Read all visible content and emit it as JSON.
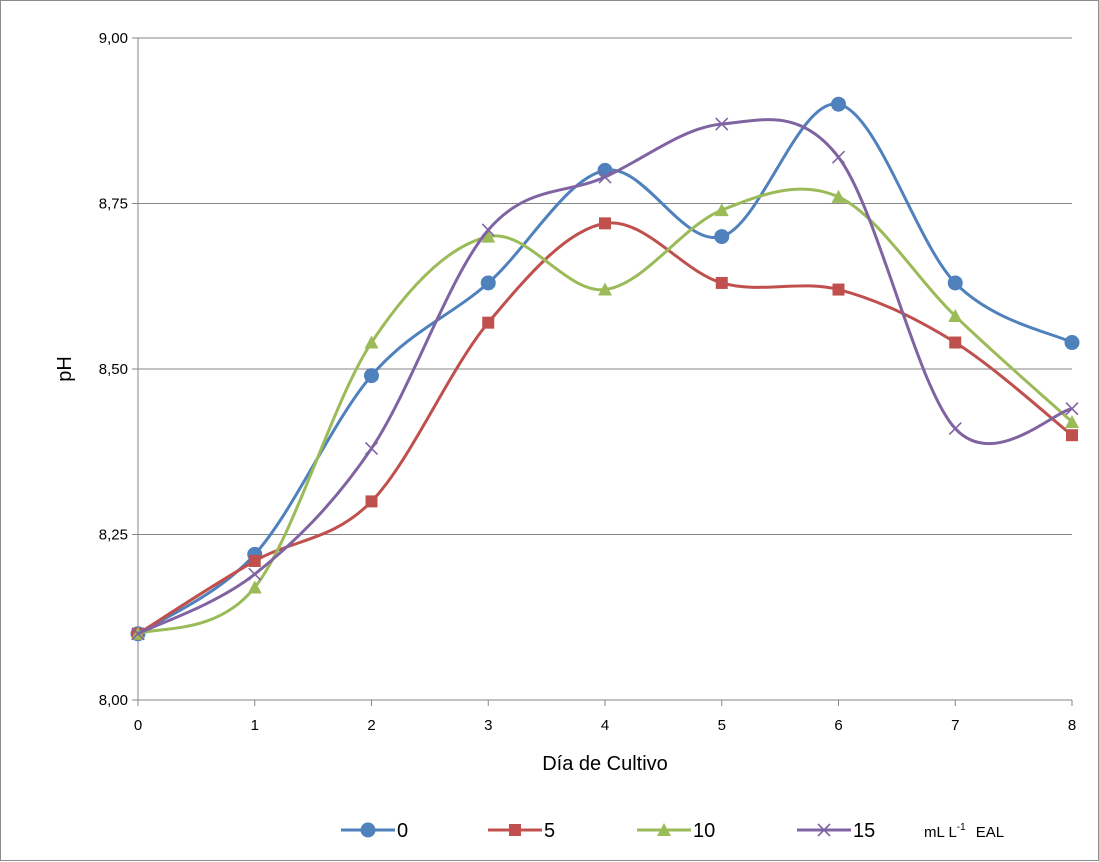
{
  "chart_data": {
    "type": "line",
    "smooth": true,
    "x": [
      0,
      1,
      2,
      3,
      4,
      5,
      6,
      7,
      8
    ],
    "xlabel": "Día de Cultivo",
    "ylabel": "pH",
    "ylim": [
      8.0,
      9.0
    ],
    "yticks": [
      "8,00",
      "8,25",
      "8,50",
      "8,75",
      "9,00"
    ],
    "xticks": [
      "0",
      "1",
      "2",
      "3",
      "4",
      "5",
      "6",
      "7",
      "8"
    ],
    "grid": "horizontal",
    "legend_position": "bottom",
    "legend_suffix": "mL L",
    "legend_suffix_sup": "-1",
    "legend_suffix_tail": "EAL",
    "series": [
      {
        "name": "0",
        "marker": "circle",
        "color": "#4f81bd",
        "values": [
          8.1,
          8.22,
          8.49,
          8.63,
          8.8,
          8.7,
          8.9,
          8.63,
          8.54
        ]
      },
      {
        "name": "5",
        "marker": "square",
        "color": "#c0504d",
        "values": [
          8.1,
          8.21,
          8.3,
          8.57,
          8.72,
          8.63,
          8.62,
          8.54,
          8.4
        ]
      },
      {
        "name": "10",
        "marker": "triangle",
        "color": "#9bbb59",
        "values": [
          8.1,
          8.17,
          8.54,
          8.7,
          8.62,
          8.74,
          8.76,
          8.58,
          8.42
        ]
      },
      {
        "name": "15",
        "marker": "x",
        "color": "#8064a2",
        "values": [
          8.1,
          8.19,
          8.38,
          8.71,
          8.79,
          8.87,
          8.82,
          8.41,
          8.44
        ]
      }
    ]
  }
}
